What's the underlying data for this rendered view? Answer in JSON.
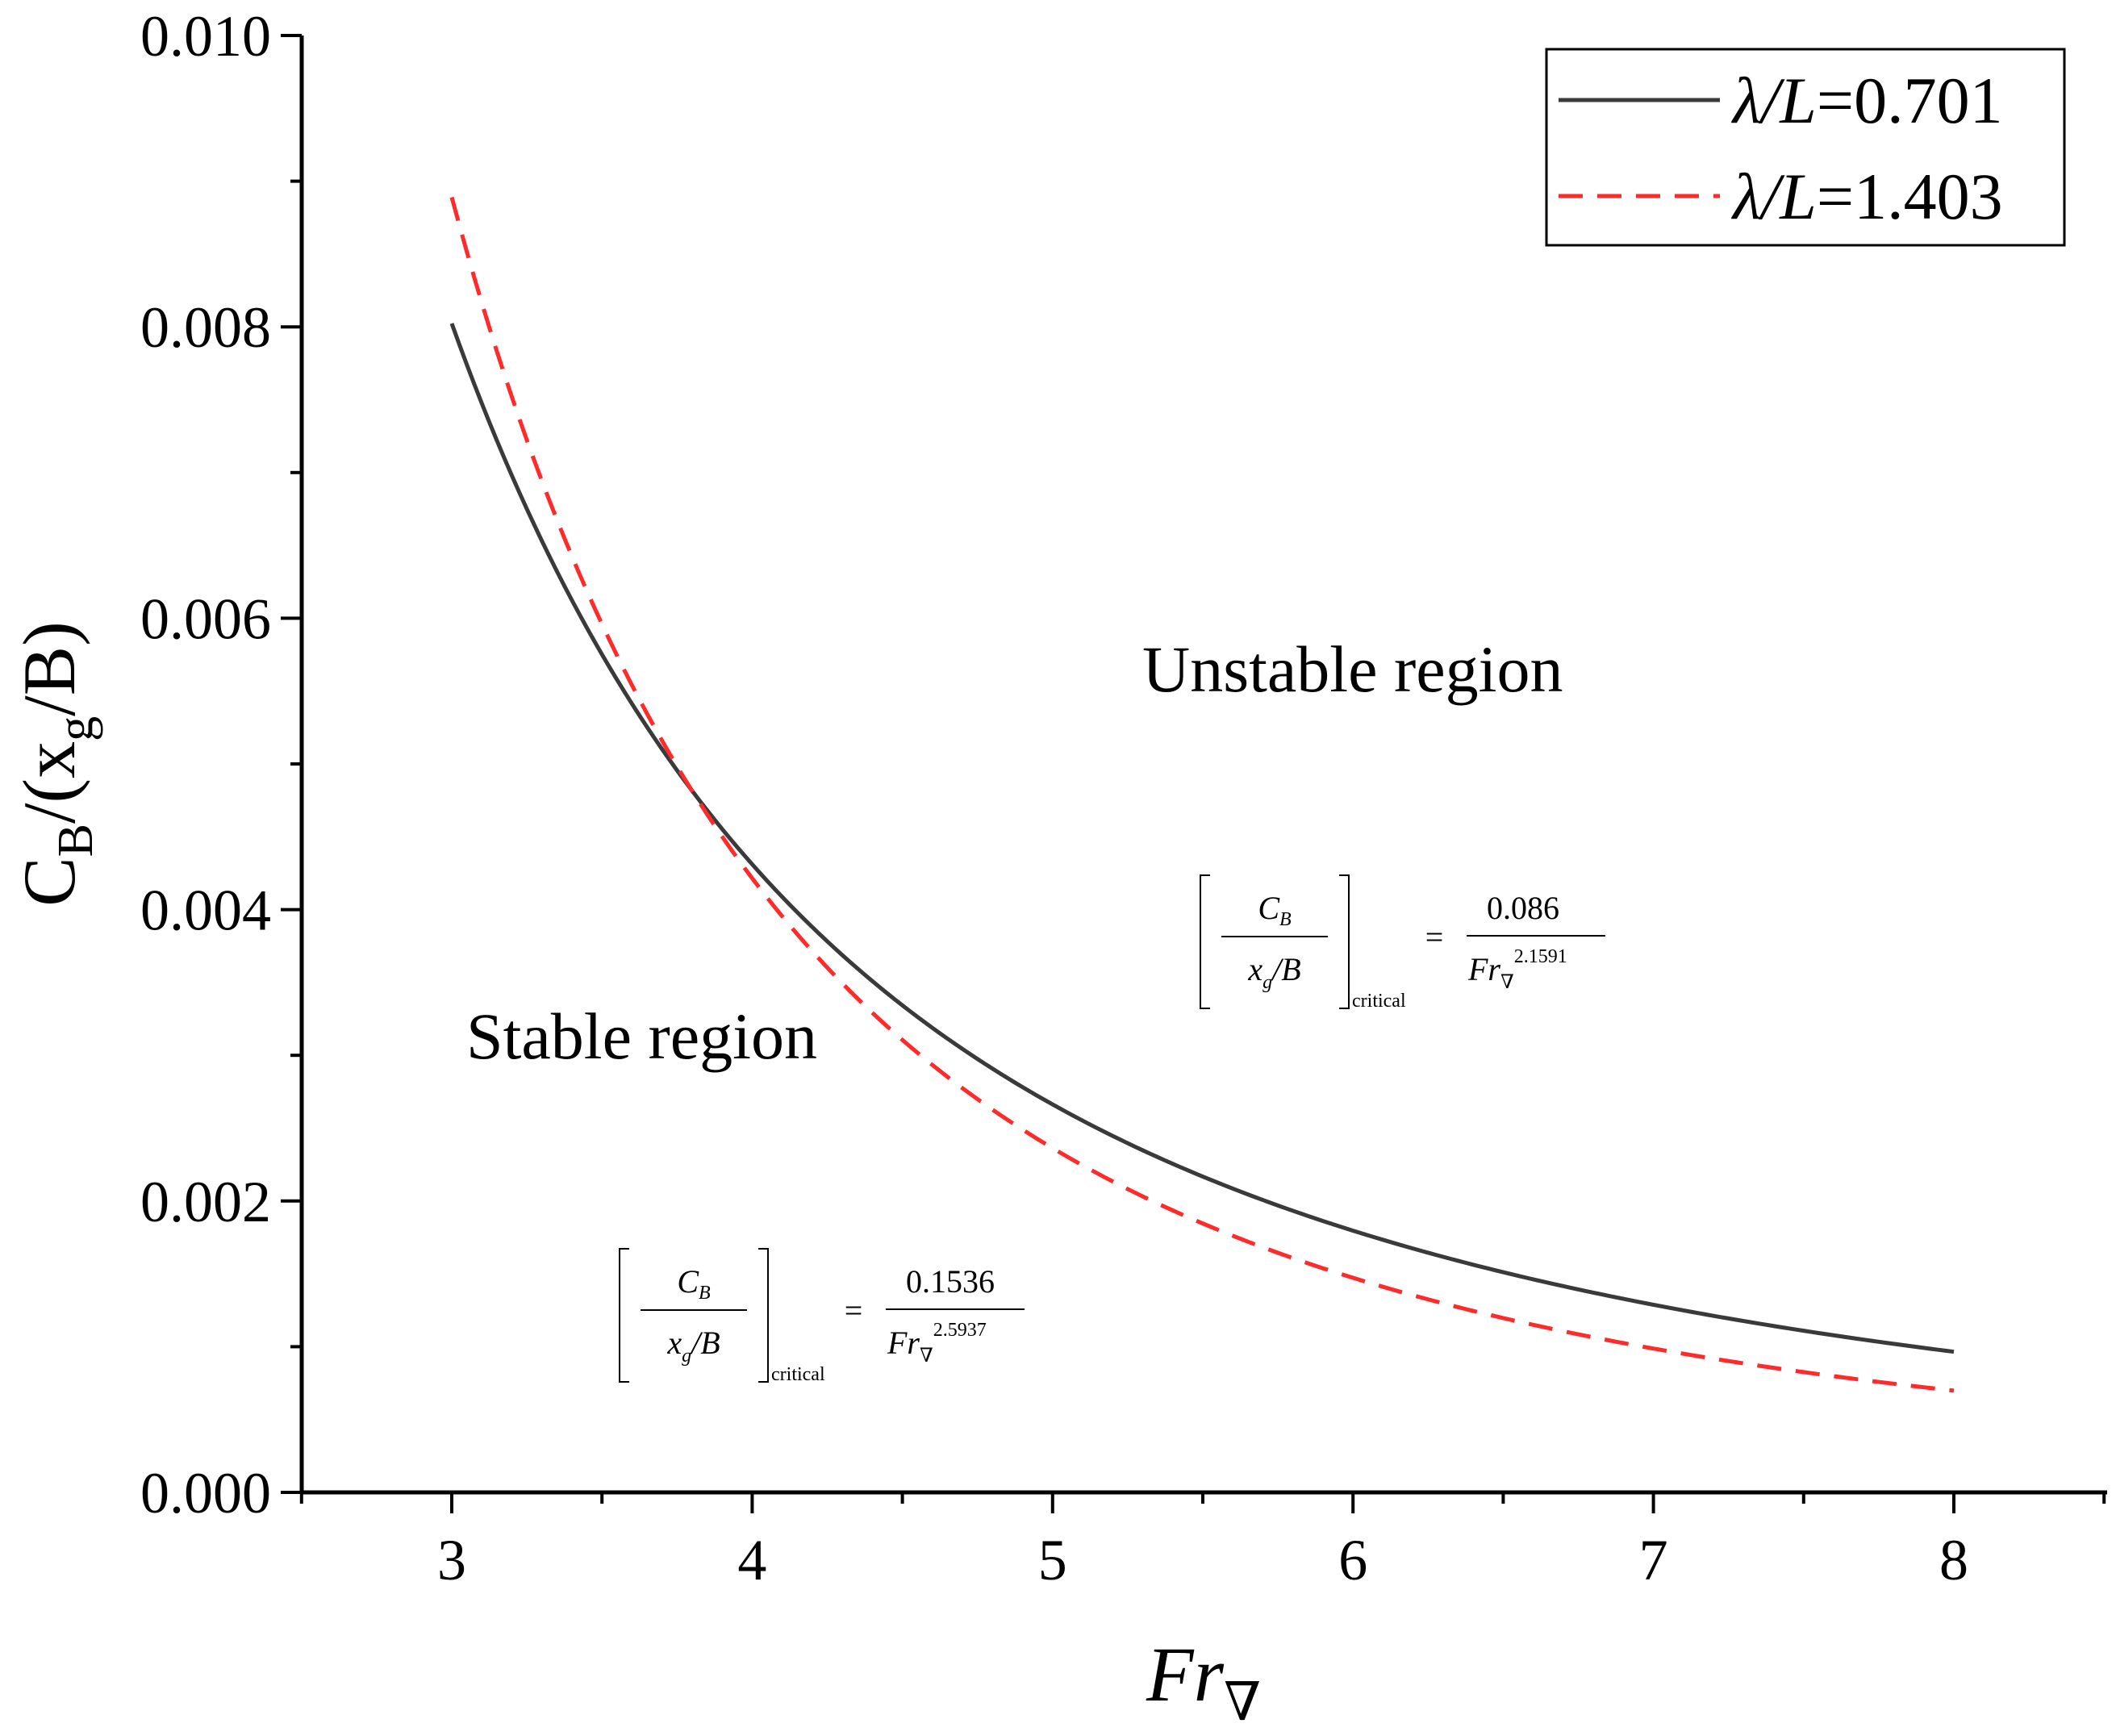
{
  "chart_data": {
    "type": "line",
    "xlabel": {
      "main": "Fr",
      "sub": "∇"
    },
    "ylabel": {
      "prefix": "C",
      "sub1": "B",
      "mid": "/(x",
      "sub2": "g",
      "suffix": "/B)"
    },
    "xlim": [
      2.5,
      8.5
    ],
    "ylim": [
      0.0,
      0.01
    ],
    "x_ticks": [
      "3",
      "4",
      "5",
      "6",
      "7",
      "8"
    ],
    "y_ticks": [
      "0.000",
      "0.002",
      "0.004",
      "0.006",
      "0.008",
      "0.010"
    ],
    "x_tick_values": [
      3,
      4,
      5,
      6,
      7,
      8
    ],
    "y_tick_values": [
      0,
      0.002,
      0.004,
      0.006,
      0.008,
      0.01
    ],
    "x_minor_ticks": [
      2.5,
      3.5,
      4.5,
      5.5,
      6.5,
      7.5,
      8.5
    ],
    "y_minor_ticks": [
      0.001,
      0.003,
      0.005,
      0.007,
      0.009
    ],
    "grid": false,
    "legend_position": "top-right",
    "series": [
      {
        "name": "λ/L=0.701",
        "legend_italic": "λ/L",
        "legend_value": "=0.701",
        "color": "#3a3a3a",
        "dash": "solid",
        "coefficient": 0.086,
        "exponent": 2.1591,
        "x": [
          3.0,
          3.25,
          3.5,
          3.75,
          4.0,
          4.5,
          5.0,
          5.5,
          6.0,
          6.5,
          7.0,
          7.5,
          8.0
        ],
        "y": [
          0.00803,
          0.00675,
          0.00573,
          0.00492,
          0.0043,
          0.00334,
          0.00265,
          0.00216,
          0.0018,
          0.00152,
          0.00129,
          0.00111,
          0.00097
        ]
      },
      {
        "name": "λ/L=1.403",
        "legend_italic": "λ/L",
        "legend_value": "=1.403",
        "color": "#ff2a2a",
        "dash": "dashed",
        "coefficient": 0.1536,
        "exponent": 2.5937,
        "x": [
          3.0,
          3.25,
          3.5,
          3.75,
          4.0,
          4.5,
          5.0,
          5.5,
          6.0,
          6.5,
          7.0,
          7.5,
          8.0
        ],
        "y": [
          0.00891,
          0.00723,
          0.00595,
          0.00497,
          0.0042,
          0.00309,
          0.00237,
          0.00186,
          0.00148,
          0.00121,
          0.00099,
          0.00083,
          0.0007
        ]
      }
    ],
    "annotations": [
      {
        "text": "Unstable region"
      },
      {
        "text": "Stable region"
      }
    ],
    "equations": [
      {
        "numerator_c": "C",
        "numerator_sub": "B",
        "denominator_x": "x",
        "denominator_sub": "g",
        "denominator_rest": "/B",
        "subscript": "critical",
        "equals": "=",
        "coefficient": "0.086",
        "fr": "Fr",
        "fr_sub": "∇",
        "exponent": "2.1591"
      },
      {
        "numerator_c": "C",
        "numerator_sub": "B",
        "denominator_x": "x",
        "denominator_sub": "g",
        "denominator_rest": "/B",
        "subscript": "critical",
        "equals": "=",
        "coefficient": "0.1536",
        "fr": "Fr",
        "fr_sub": "∇",
        "exponent": "2.5937"
      }
    ]
  }
}
